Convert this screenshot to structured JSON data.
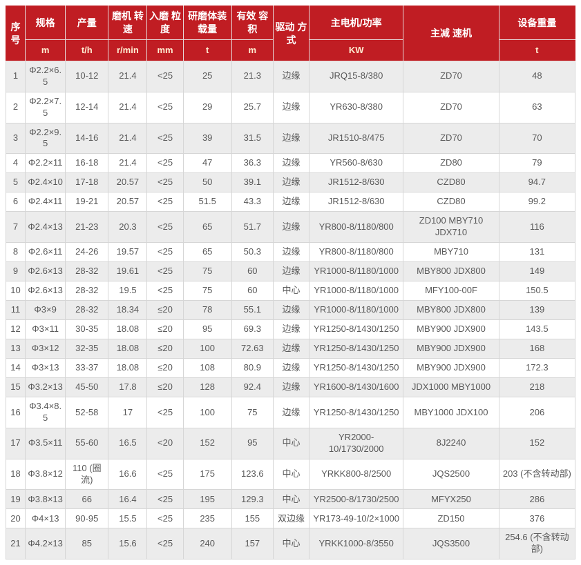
{
  "page": {
    "background": "#ffffff"
  },
  "colors": {
    "header_bg": "#c01d23",
    "header_text": "#ffffff",
    "header_unit_text": "#ffedd2",
    "header_divider": "#e6d9d9",
    "row_alt_bg": "#ececec",
    "row_bg": "#ffffff",
    "body_text": "#595959",
    "grid_line": "#d6d6d6"
  },
  "table": {
    "header": {
      "serial": "序号",
      "spec": {
        "label": "规格",
        "unit": "m"
      },
      "output": {
        "label": "产量",
        "unit": "t/h"
      },
      "speed": {
        "label": "磨机 转速",
        "unit": "r/min"
      },
      "feed_size": {
        "label": "入磨 粒度",
        "unit": "mm"
      },
      "media_load": {
        "label": "研磨体装载量",
        "unit": "t"
      },
      "volume": {
        "label": "有效 容积",
        "unit": "m"
      },
      "drive": "驱动 方式",
      "motor": {
        "label": "主电机/功率",
        "unit": "KW"
      },
      "reducer": "主减 速机",
      "weight": {
        "label": "设备重量",
        "unit": "t"
      }
    },
    "column_keys": [
      "index",
      "spec",
      "output",
      "speed",
      "feed-size",
      "media-load",
      "volume",
      "drive",
      "motor",
      "reducer",
      "weight"
    ],
    "rows": [
      [
        "1",
        "Φ2.2×6.5",
        "10-12",
        "21.4",
        "<25",
        "25",
        "21.3",
        "边缘",
        "JRQ15-8/380",
        "ZD70",
        "48"
      ],
      [
        "2",
        "Φ2.2×7.5",
        "12-14",
        "21.4",
        "<25",
        "29",
        "25.7",
        "边缘",
        "YR630-8/380",
        "ZD70",
        "63"
      ],
      [
        "3",
        "Φ2.2×9.5",
        "14-16",
        "21.4",
        "<25",
        "39",
        "31.5",
        "边缘",
        "JR1510-8/475",
        "ZD70",
        "70"
      ],
      [
        "4",
        "Φ2.2×11",
        "16-18",
        "21.4",
        "<25",
        "47",
        "36.3",
        "边缘",
        "YR560-8/630",
        "ZD80",
        "79"
      ],
      [
        "5",
        "Φ2.4×10",
        "17-18",
        "20.57",
        "<25",
        "50",
        "39.1",
        "边缘",
        "JR1512-8/630",
        "CZD80",
        "94.7"
      ],
      [
        "6",
        "Φ2.4×11",
        "19-21",
        "20.57",
        "<25",
        "51.5",
        "43.3",
        "边缘",
        "JR1512-8/630",
        "CZD80",
        "99.2"
      ],
      [
        "7",
        "Φ2.4×13",
        "21-23",
        "20.3",
        "<25",
        "65",
        "51.7",
        "边缘",
        "YR800-8/1180/800",
        "ZD100 MBY710 JDX710",
        "116"
      ],
      [
        "8",
        "Φ2.6×11",
        "24-26",
        "19.57",
        "<25",
        "65",
        "50.3",
        "边缘",
        "YR800-8/1180/800",
        "MBY710",
        "131"
      ],
      [
        "9",
        "Φ2.6×13",
        "28-32",
        "19.61",
        "<25",
        "75",
        "60",
        "边缘",
        "YR1000-8/1180/1000",
        "MBY800 JDX800",
        "149"
      ],
      [
        "10",
        "Φ2.6×13",
        "28-32",
        "19.5",
        "<25",
        "75",
        "60",
        "中心",
        "YR1000-8/1180/1000",
        "MFY100-00F",
        "150.5"
      ],
      [
        "11",
        "Φ3×9",
        "28-32",
        "18.34",
        "≤20",
        "78",
        "55.1",
        "边缘",
        "YR1000-8/1180/1000",
        "MBY800 JDX800",
        "139"
      ],
      [
        "12",
        "Φ3×11",
        "30-35",
        "18.08",
        "≤20",
        "95",
        "69.3",
        "边缘",
        "YR1250-8/1430/1250",
        "MBY900 JDX900",
        "143.5"
      ],
      [
        "13",
        "Φ3×12",
        "32-35",
        "18.08",
        "≤20",
        "100",
        "72.63",
        "边缘",
        "YR1250-8/1430/1250",
        "MBY900 JDX900",
        "168"
      ],
      [
        "14",
        "Φ3×13",
        "33-37",
        "18.08",
        "≤20",
        "108",
        "80.9",
        "边缘",
        "YR1250-8/1430/1250",
        "MBY900 JDX900",
        "172.3"
      ],
      [
        "15",
        "Φ3.2×13",
        "45-50",
        "17.8",
        "≤20",
        "128",
        "92.4",
        "边缘",
        "YR1600-8/1430/1600",
        "JDX1000 MBY1000",
        "218"
      ],
      [
        "16",
        "Φ3.4×8.5",
        "52-58",
        "17",
        "<25",
        "100",
        "75",
        "边缘",
        "YR1250-8/1430/1250",
        "MBY1000 JDX100",
        "206"
      ],
      [
        "17",
        "Φ3.5×11",
        "55-60",
        "16.5",
        "<20",
        "152",
        "95",
        "中心",
        "YR2000-10/1730/2000",
        "8J2240",
        "152"
      ],
      [
        "18",
        "Φ3.8×12",
        "110 (圈流)",
        "16.6",
        "<25",
        "175",
        "123.6",
        "中心",
        "YRKK800-8/2500",
        "JQS2500",
        "203 (不含转动部)"
      ],
      [
        "19",
        "Φ3.8×13",
        "66",
        "16.4",
        "<25",
        "195",
        "129.3",
        "中心",
        "YR2500-8/1730/2500",
        "MFYX250",
        "286"
      ],
      [
        "20",
        "Φ4×13",
        "90-95",
        "15.5",
        "<25",
        "235",
        "155",
        "双边缘",
        "YR173-49-10/2×1000",
        "ZD150",
        "376"
      ],
      [
        "21",
        "Φ4.2×13",
        "85",
        "15.6",
        "<25",
        "240",
        "157",
        "中心",
        "YRKK1000-8/3550",
        "JQS3500",
        "254.6 (不含转动部)"
      ]
    ]
  }
}
